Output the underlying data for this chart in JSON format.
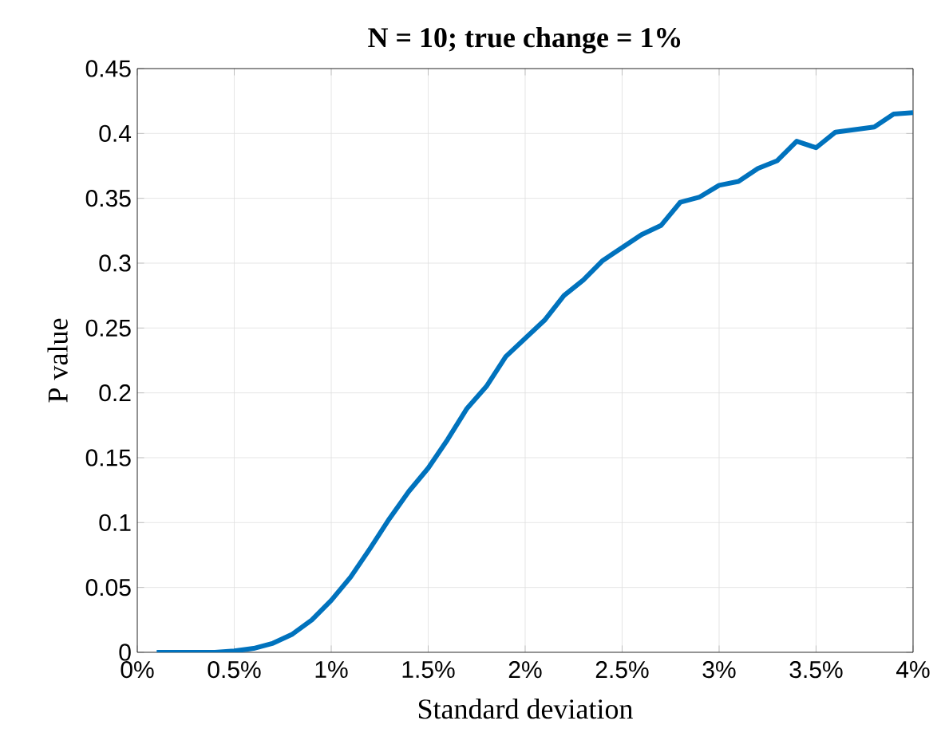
{
  "chart_data": {
    "type": "line",
    "title": "N = 10; true change = 1%",
    "xlabel": "Standard deviation",
    "ylabel": "P value",
    "x": [
      0.1,
      0.2,
      0.3,
      0.4,
      0.5,
      0.6,
      0.7,
      0.8,
      0.9,
      1.0,
      1.1,
      1.2,
      1.3,
      1.4,
      1.5,
      1.6,
      1.7,
      1.8,
      1.9,
      2.0,
      2.1,
      2.2,
      2.3,
      2.4,
      2.5,
      2.6,
      2.7,
      2.8,
      2.9,
      3.0,
      3.1,
      3.2,
      3.3,
      3.4,
      3.5,
      3.6,
      3.7,
      3.8,
      3.9,
      4.0
    ],
    "series": [
      {
        "color": "#0072bd",
        "values": [
          0,
          0,
          0,
          0,
          0.001,
          0.003,
          0.007,
          0.014,
          0.025,
          0.04,
          0.058,
          0.08,
          0.103,
          0.124,
          0.142,
          0.164,
          0.188,
          0.205,
          0.228,
          0.242,
          0.256,
          0.275,
          0.287,
          0.302,
          0.312,
          0.322,
          0.329,
          0.347,
          0.351,
          0.36,
          0.363,
          0.373,
          0.379,
          0.394,
          0.389,
          0.401,
          0.403,
          0.405,
          0.415,
          0.416
        ]
      }
    ],
    "xlim": [
      0,
      4
    ],
    "ylim": [
      0,
      0.45
    ],
    "xticks": [
      {
        "value": 0,
        "label": "0%"
      },
      {
        "value": 0.5,
        "label": "0.5%"
      },
      {
        "value": 1,
        "label": "1%"
      },
      {
        "value": 1.5,
        "label": "1.5%"
      },
      {
        "value": 2,
        "label": "2%"
      },
      {
        "value": 2.5,
        "label": "2.5%"
      },
      {
        "value": 3,
        "label": "3%"
      },
      {
        "value": 3.5,
        "label": "3.5%"
      },
      {
        "value": 4,
        "label": "4%"
      }
    ],
    "yticks": [
      0,
      0.05,
      0.1,
      0.15,
      0.2,
      0.25,
      0.3,
      0.35,
      0.4,
      0.45
    ],
    "grid": true
  }
}
